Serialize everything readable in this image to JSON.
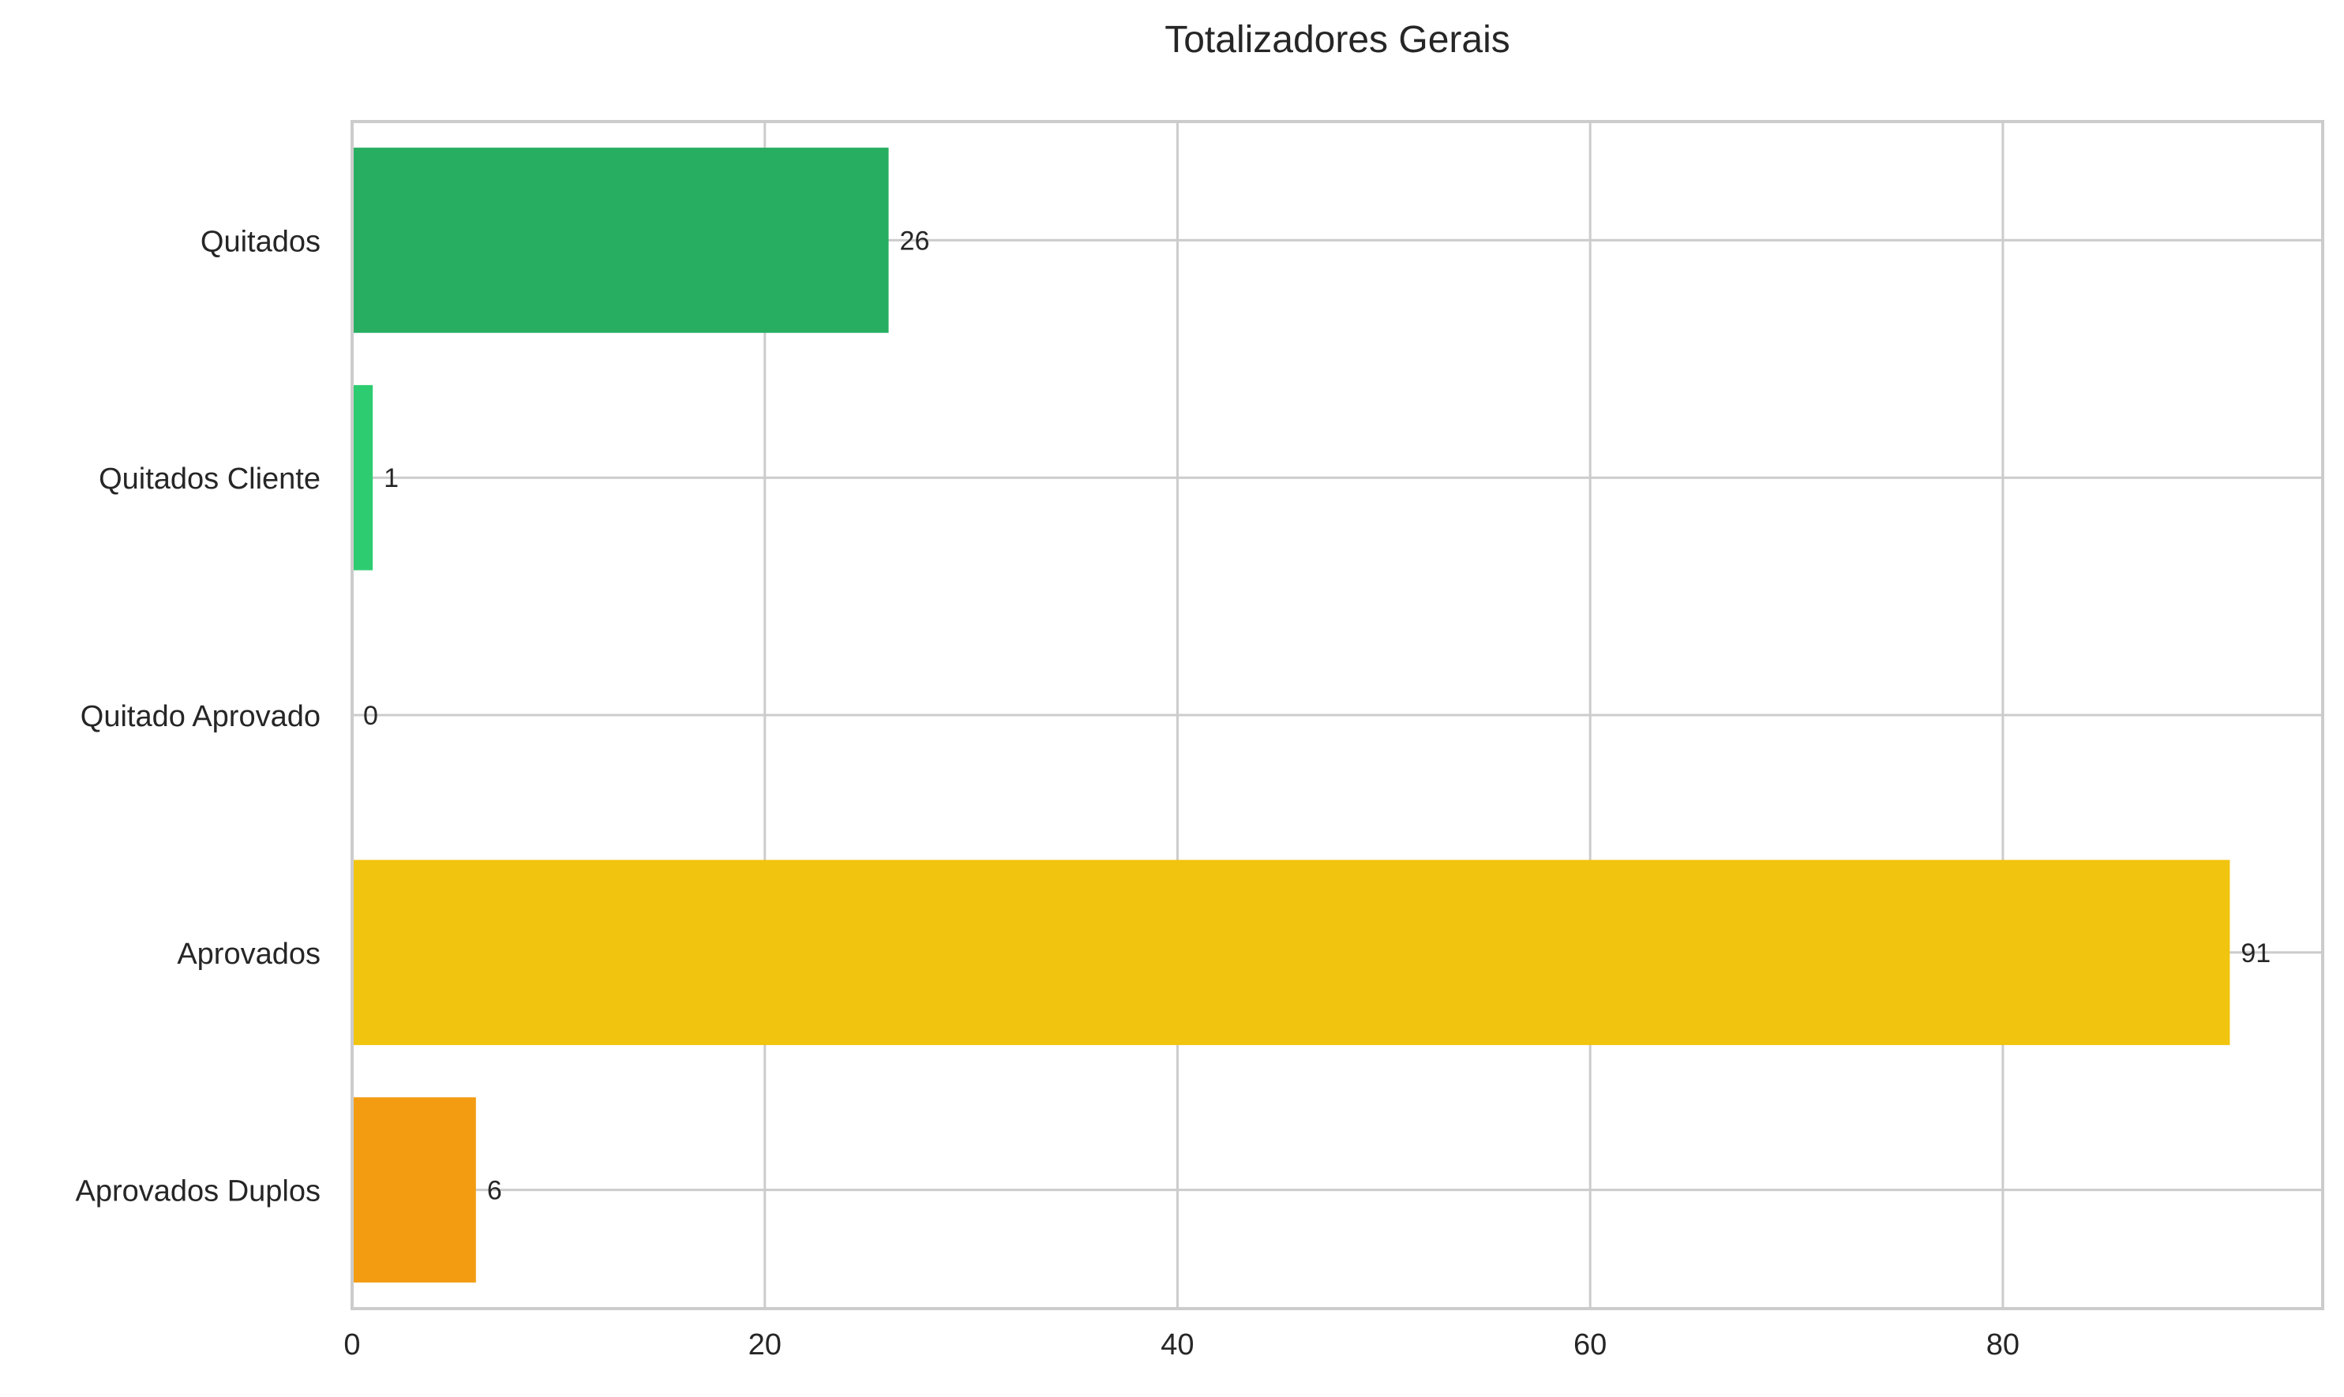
{
  "chart_data": {
    "type": "bar",
    "orientation": "horizontal",
    "title": "Totalizadores Gerais",
    "xlabel": "",
    "ylabel": "",
    "categories": [
      "Quitados",
      "Quitados Cliente",
      "Quitado Aprovado",
      "Aprovados",
      "Aprovados Duplos"
    ],
    "values": [
      26,
      1,
      0,
      91,
      6
    ],
    "colors": [
      "#27ae60",
      "#2ecc71",
      "#2ecc71",
      "#f1c40f",
      "#f39c12"
    ],
    "data_labels": [
      "26",
      "1",
      "0",
      "91",
      "6"
    ],
    "xlim": [
      0,
      95.5
    ],
    "xticks": [
      0,
      20,
      40,
      60,
      80
    ],
    "grid": true,
    "legend": "none"
  }
}
